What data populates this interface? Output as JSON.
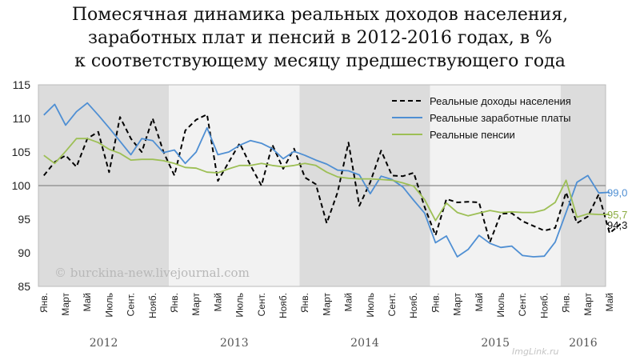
{
  "title": {
    "line1": "Помесячная динамика реальных доходов населения,",
    "line2": "заработных плат и пенсий в 2012-2016 годах, в %",
    "line3": "к соответствующему месяцу предшествующего года"
  },
  "watermark": "© burckina-new.livejournal.com",
  "site_mark": "ImgLink.ru",
  "chart_data": {
    "type": "line",
    "ylim": [
      85,
      115
    ],
    "yticks": [
      85,
      90,
      95,
      100,
      105,
      110,
      115
    ],
    "reference_line": 100,
    "x_month_labels": [
      "Янв.",
      "Март",
      "Май",
      "Июль",
      "Сент.",
      "Нояб."
    ],
    "x_month_labels_last_year": [
      "Янв.",
      "Март",
      "Май"
    ],
    "years": [
      "2012",
      "2013",
      "2014",
      "2015",
      "2016"
    ],
    "shaded_years": [
      "2012",
      "2014",
      "2016"
    ],
    "legend_position": "top-right",
    "series": [
      {
        "name": "Реальные доходы населения",
        "color": "#000000",
        "style": "dashed",
        "values": [
          101.5,
          103.5,
          104.5,
          102.8,
          107.0,
          108.0,
          102.0,
          110.2,
          107.0,
          105.0,
          110.0,
          105.0,
          101.5,
          108.2,
          109.8,
          110.6,
          100.7,
          103.5,
          106.3,
          103.0,
          100.0,
          106.1,
          102.5,
          105.5,
          101.2,
          100.2,
          94.4,
          99.0,
          106.4,
          97.0,
          100.5,
          105.2,
          101.5,
          101.4,
          101.9,
          96.8,
          92.6,
          98.0,
          97.5,
          97.6,
          97.5,
          91.6,
          95.8,
          95.9,
          94.7,
          94.0,
          93.3,
          93.7,
          99.0,
          94.4,
          95.4,
          98.7,
          92.9,
          94.3
        ],
        "end_label": "94,3"
      },
      {
        "name": "Реальные заработные платы",
        "color": "#4f8fd3",
        "style": "solid",
        "values": [
          110.5,
          112.1,
          109.0,
          111.0,
          112.3,
          110.5,
          108.6,
          106.6,
          104.6,
          107.0,
          106.7,
          104.9,
          105.3,
          103.3,
          105.0,
          108.6,
          104.6,
          105.0,
          106.0,
          106.7,
          106.3,
          105.5,
          104.0,
          105.1,
          104.5,
          103.8,
          103.2,
          102.3,
          102.2,
          101.6,
          98.8,
          101.4,
          100.9,
          99.8,
          97.8,
          95.9,
          91.5,
          92.5,
          89.4,
          90.5,
          92.6,
          91.4,
          90.8,
          91.0,
          89.6,
          89.4,
          89.5,
          91.6,
          96.0,
          100.5,
          101.5,
          98.9,
          99.0
        ],
        "end_label": "99,0"
      },
      {
        "name": "Реальные пенсии",
        "color": "#9dbf55",
        "style": "solid",
        "values": [
          104.5,
          103.3,
          105.1,
          107.0,
          107.0,
          106.4,
          105.4,
          104.8,
          103.8,
          103.9,
          103.9,
          103.7,
          103.3,
          102.7,
          102.6,
          102.0,
          101.9,
          102.5,
          103.0,
          103.0,
          103.3,
          103.0,
          102.8,
          103.0,
          103.3,
          103.0,
          102.0,
          101.3,
          101.1,
          101.0,
          101.0,
          100.9,
          100.8,
          100.4,
          99.9,
          97.9,
          94.8,
          97.4,
          96.0,
          95.5,
          95.9,
          96.3,
          96.0,
          96.1,
          96.0,
          96.0,
          96.4,
          97.5,
          100.8,
          95.3,
          95.8,
          95.7,
          95.7
        ],
        "end_label": "95,7"
      }
    ]
  }
}
